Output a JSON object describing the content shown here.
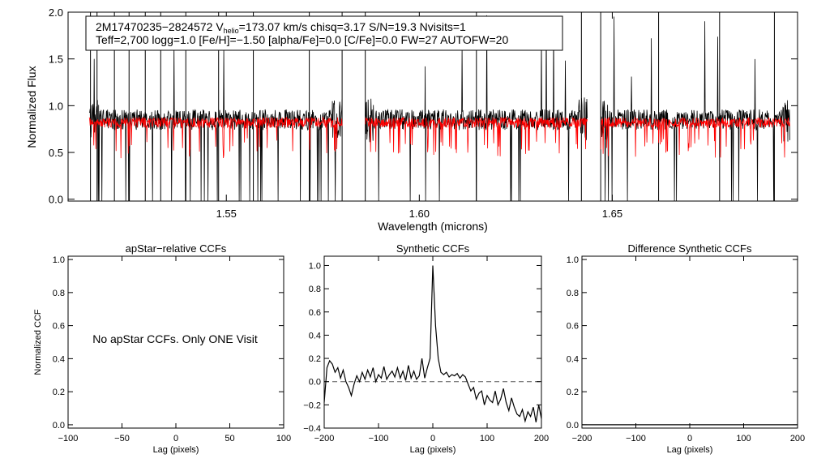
{
  "page": {
    "background": "#ffffff",
    "colors": {
      "observed": "#000000",
      "model": "#ff0000",
      "axis": "#000000",
      "zero_line": "#555555"
    }
  },
  "chart_data": [
    {
      "id": "spectrum",
      "type": "line",
      "title": "",
      "xlabel": "Wavelength (microns)",
      "ylabel": "Normalized Flux",
      "xlim": [
        1.509,
        1.698
      ],
      "ylim": [
        -0.02,
        2.0
      ],
      "xticks": [
        1.55,
        1.6,
        1.65
      ],
      "xtick_labels": [
        "1.55",
        "1.60",
        "1.65"
      ],
      "yticks": [
        0.0,
        0.5,
        1.0,
        1.5,
        2.0
      ],
      "ytick_labels": [
        "0.0",
        "0.5",
        "1.0",
        "1.5",
        "2.0"
      ],
      "legend": {
        "line1_id": "2M17470235−2824572",
        "line1_v_prefix": "V",
        "line1_v_sub": "helio",
        "line1_rest": "=173.07 km/s  chisq=3.17  S/N=19.3  Nvisits=1",
        "line2": "Teff=2,700 logg=1.0 [Fe/H]=−1.50 [alpha/Fe]=0.0 [C/Fe]=0.0 FW=27 AUTOFW=20"
      },
      "chip_ranges": [
        [
          1.5145,
          1.58
        ],
        [
          1.586,
          1.6435
        ],
        [
          1.647,
          1.696
        ]
      ],
      "series": [
        {
          "name": "observed",
          "color": "#000000",
          "baseline": 0.85,
          "noise": 0.11
        },
        {
          "name": "model",
          "color": "#ff0000",
          "baseline": 0.82,
          "noise": 0.055
        }
      ]
    },
    {
      "id": "apstar_ccf",
      "type": "line",
      "title": "apStar−relative CCFs",
      "xlabel": "Lag (pixels)",
      "ylabel": "Normalized CCF",
      "xlim": [
        -100,
        100
      ],
      "ylim": [
        -0.02,
        1.02
      ],
      "xticks": [
        -100,
        -50,
        0,
        50,
        100
      ],
      "xtick_labels": [
        "−100",
        "−50",
        "0",
        "50",
        "100"
      ],
      "yticks": [
        0.0,
        0.2,
        0.4,
        0.6,
        0.8,
        1.0
      ],
      "ytick_labels": [
        "0.0",
        "0.2",
        "0.4",
        "0.6",
        "0.8",
        "1.0"
      ],
      "annotation": "No apStar CCFs.  Only ONE Visit"
    },
    {
      "id": "synthetic_ccf",
      "type": "line",
      "title": "Synthetic CCFs",
      "xlabel": "Lag (pixels)",
      "ylabel": "",
      "xlim": [
        -200,
        200
      ],
      "ylim": [
        -0.4,
        1.08
      ],
      "xticks": [
        -200,
        -100,
        0,
        100,
        200
      ],
      "xtick_labels": [
        "−200",
        "−100",
        "0",
        "100",
        "200"
      ],
      "yticks": [
        -0.4,
        -0.2,
        0.0,
        0.2,
        0.4,
        0.6,
        0.8,
        1.0
      ],
      "ytick_labels": [
        "−0.4",
        "−0.2",
        "0.0",
        "0.2",
        "0.4",
        "0.6",
        "0.8",
        "1.0"
      ],
      "zero_line": true,
      "series": [
        {
          "name": "ccf",
          "x": [
            -200,
            -195,
            -190,
            -185,
            -180,
            -175,
            -170,
            -165,
            -160,
            -155,
            -150,
            -145,
            -140,
            -135,
            -130,
            -125,
            -120,
            -115,
            -110,
            -105,
            -100,
            -95,
            -90,
            -85,
            -80,
            -75,
            -70,
            -65,
            -60,
            -55,
            -50,
            -45,
            -40,
            -35,
            -30,
            -25,
            -20,
            -15,
            -10,
            -5,
            0,
            5,
            10,
            15,
            20,
            25,
            30,
            35,
            40,
            45,
            50,
            55,
            60,
            65,
            70,
            75,
            80,
            85,
            90,
            95,
            100,
            105,
            110,
            115,
            120,
            125,
            130,
            135,
            140,
            145,
            150,
            155,
            160,
            165,
            170,
            175,
            180,
            185,
            190,
            195,
            200
          ],
          "values": [
            -0.18,
            0.12,
            0.18,
            0.15,
            0.08,
            0.12,
            0.03,
            0.1,
            0.0,
            -0.05,
            -0.12,
            -0.02,
            0.05,
            0.0,
            0.08,
            0.02,
            0.1,
            0.04,
            0.12,
            0.0,
            0.06,
            0.03,
            0.13,
            0.02,
            0.06,
            0.09,
            0.04,
            0.12,
            0.03,
            0.09,
            0.01,
            0.14,
            0.03,
            0.09,
            0.02,
            0.05,
            0.2,
            0.03,
            0.12,
            0.2,
            1.0,
            0.48,
            0.2,
            0.08,
            0.06,
            0.08,
            0.04,
            0.06,
            0.05,
            0.07,
            0.03,
            0.06,
            0.04,
            -0.02,
            -0.08,
            -0.05,
            -0.15,
            -0.1,
            -0.08,
            -0.2,
            -0.12,
            -0.16,
            -0.18,
            -0.08,
            -0.2,
            -0.15,
            -0.06,
            -0.18,
            -0.25,
            -0.14,
            -0.22,
            -0.28,
            -0.3,
            -0.24,
            -0.34,
            -0.26,
            -0.3,
            -0.22,
            -0.35,
            -0.2,
            -0.32
          ]
        }
      ]
    },
    {
      "id": "difference_ccf",
      "type": "line",
      "title": "Difference Synthetic CCFs",
      "xlabel": "Lag (pixels)",
      "ylabel": "",
      "xlim": [
        -200,
        200
      ],
      "ylim": [
        -0.02,
        1.02
      ],
      "xticks": [
        -200,
        -100,
        0,
        100,
        200
      ],
      "xtick_labels": [
        "−200",
        "−100",
        "0",
        "100",
        "200"
      ],
      "yticks": [
        0.0,
        0.2,
        0.4,
        0.6,
        0.8,
        1.0
      ],
      "ytick_labels": [
        "0.0",
        "0.2",
        "0.4",
        "0.6",
        "0.8",
        "1.0"
      ],
      "series": [
        {
          "name": "difference",
          "x": [
            -200,
            200
          ],
          "values": [
            0.0,
            0.0
          ]
        }
      ]
    }
  ]
}
